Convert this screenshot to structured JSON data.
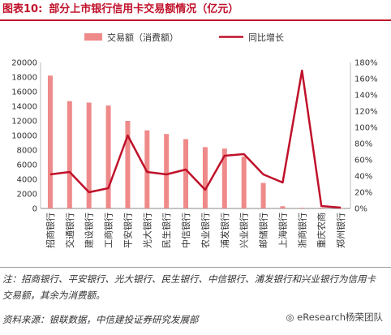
{
  "header": {
    "figure_label": "图表10:",
    "title": "部分上市银行信用卡交易额情况（亿元）"
  },
  "chart_data": {
    "type": "bar",
    "categories": [
      "招商银行",
      "交通银行",
      "建设银行",
      "工商银行",
      "平安银行",
      "光大银行",
      "民生银行",
      "中信银行",
      "农业银行",
      "浦发银行",
      "兴业银行",
      "邮储银行",
      "上海银行",
      "浙商银行",
      "重庆农商",
      "郑州银行"
    ],
    "series": [
      {
        "name": "交易额（消费额）",
        "type": "bar",
        "axis": "left",
        "values": [
          18200,
          14700,
          14500,
          14100,
          12000,
          10700,
          10200,
          9500,
          8400,
          8200,
          7100,
          3500,
          300,
          100,
          100,
          50
        ]
      },
      {
        "name": "同比增长",
        "type": "line",
        "axis": "right",
        "values": [
          0.42,
          0.45,
          0.2,
          0.25,
          0.9,
          0.45,
          0.42,
          0.48,
          0.23,
          0.65,
          0.67,
          0.42,
          0.32,
          1.7,
          0.03,
          0.01
        ]
      }
    ],
    "y_left": {
      "min": 0,
      "max": 20000,
      "step": 2000,
      "ticks": [
        "0",
        "2000",
        "4000",
        "6000",
        "8000",
        "10000",
        "12000",
        "14000",
        "16000",
        "18000",
        "20000"
      ]
    },
    "y_right": {
      "min": 0,
      "max": 1.8,
      "step": 0.2,
      "ticks": [
        "0%",
        "20%",
        "40%",
        "60%",
        "80%",
        "100%",
        "120%",
        "140%",
        "160%",
        "180%"
      ]
    },
    "legend_position": "top",
    "colors": {
      "bar": "#ef8a8a",
      "line": "#c0112a"
    }
  },
  "footer": {
    "note": "注：招商银行、平安银行、光大银行、民生银行、中信银行、浦发银行和兴业银行为信用卡交易额，其余为消费额。",
    "source": "资料来源：银联数据，中信建投证券研究发展部",
    "watermark": "eResearch杨荣团队"
  }
}
